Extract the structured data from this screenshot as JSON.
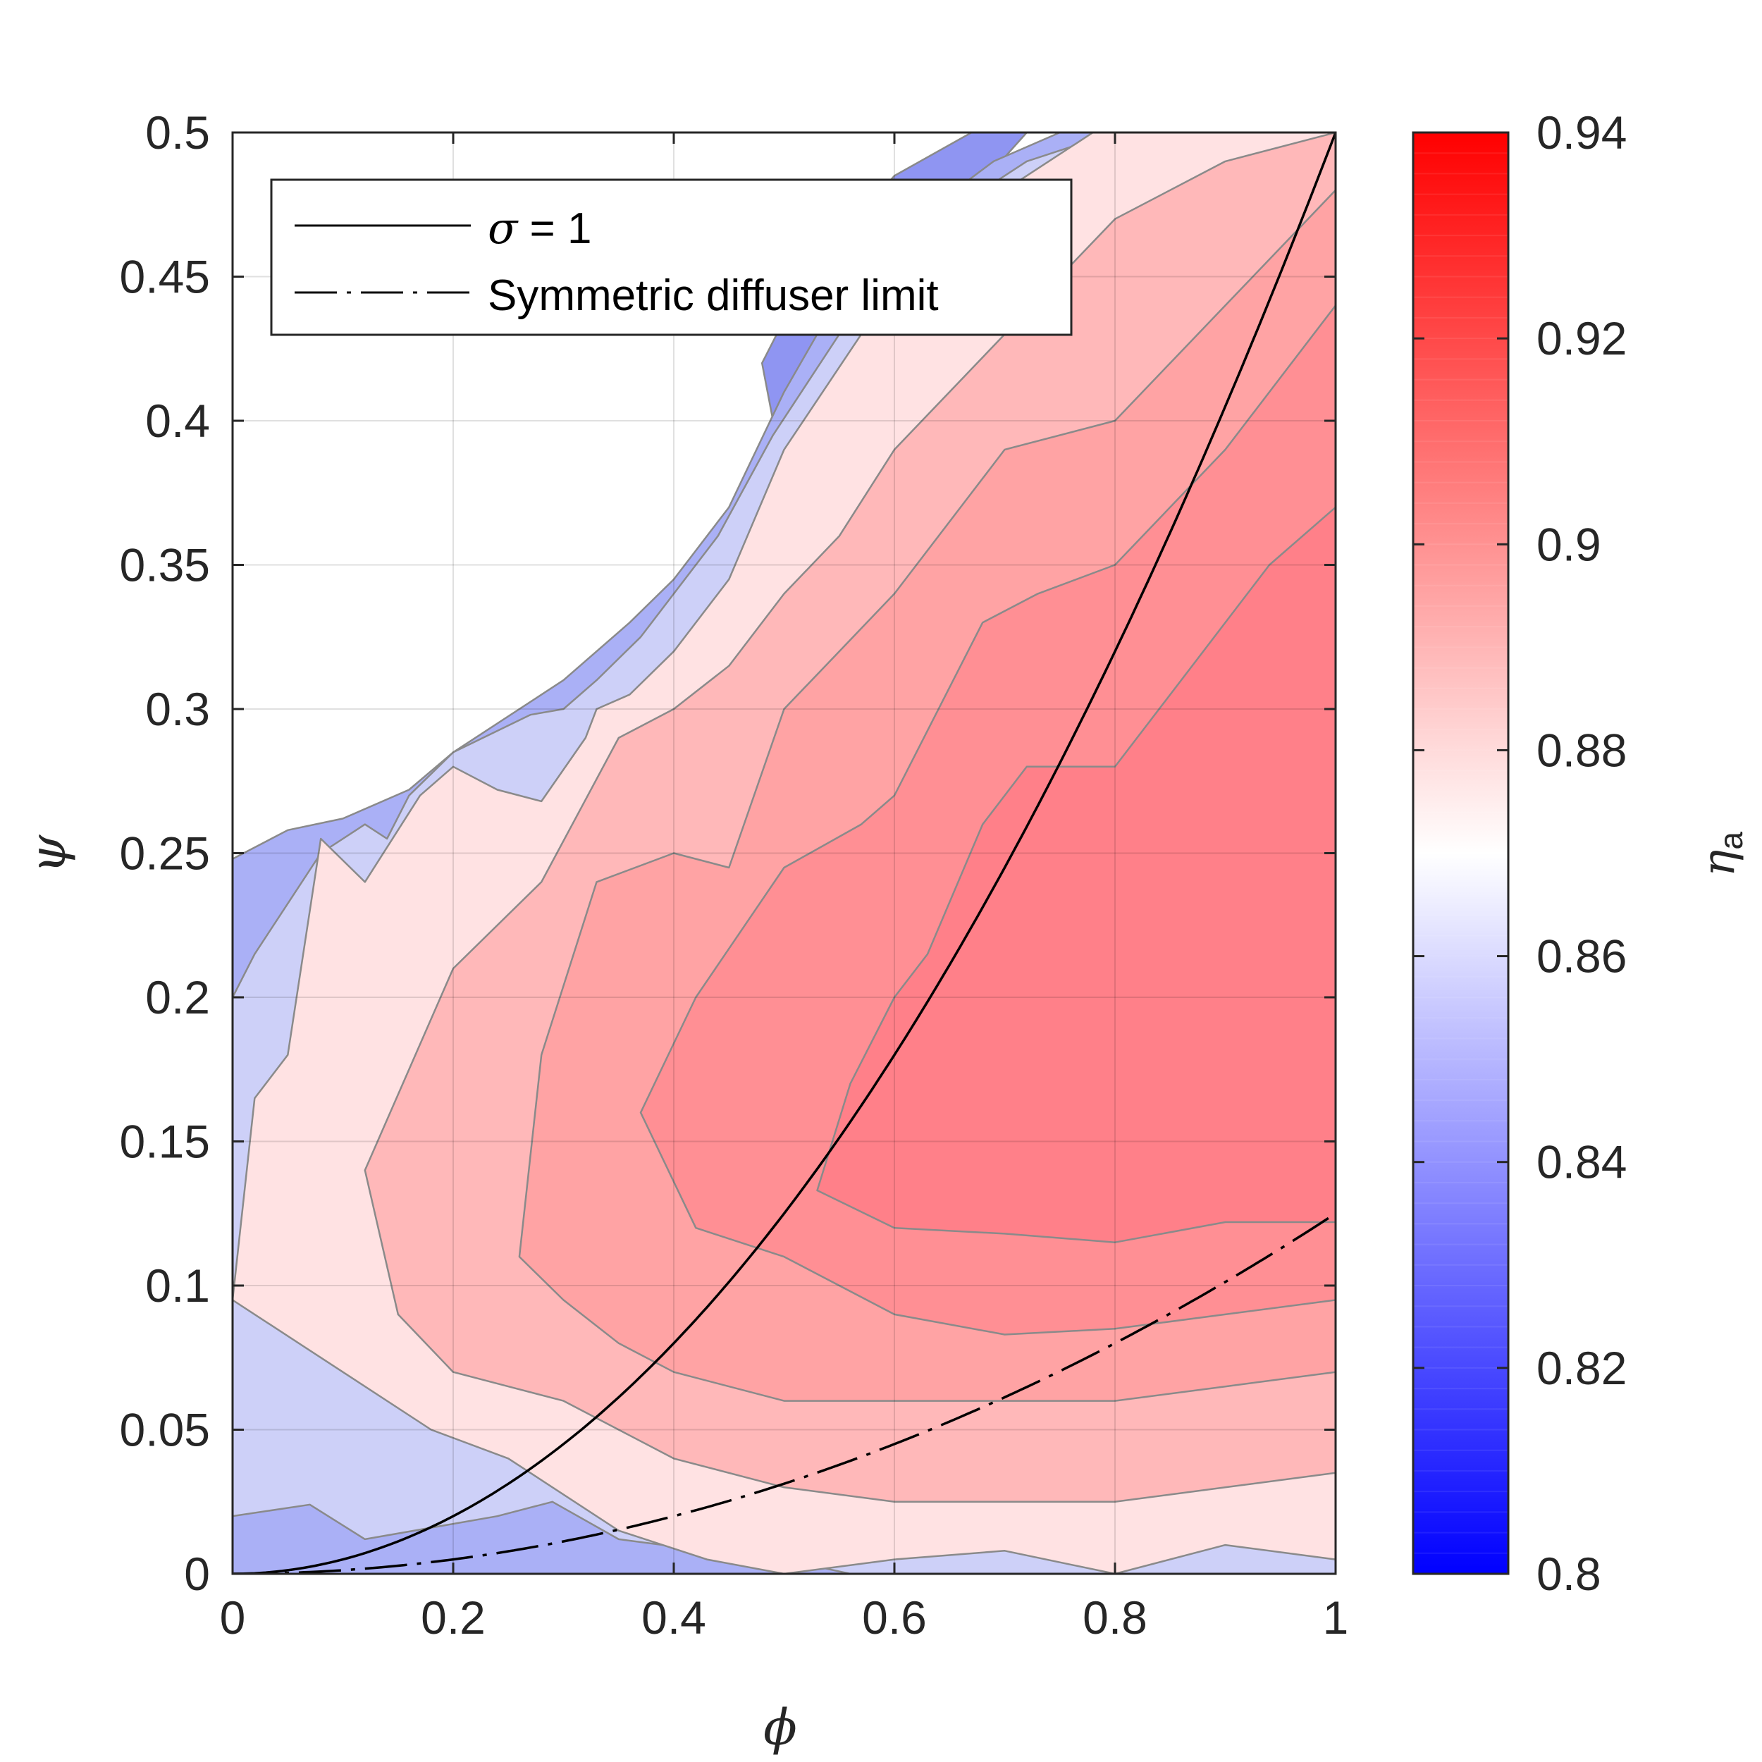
{
  "chart_data": {
    "type": "contour",
    "xlabel": "ϕ",
    "ylabel": "ψ",
    "xlim": [
      0,
      1
    ],
    "ylim": [
      0,
      0.5
    ],
    "xticks": [
      "0",
      "0.2",
      "0.4",
      "0.6",
      "0.8",
      "1"
    ],
    "yticks": [
      "0",
      "0.05",
      "0.1",
      "0.15",
      "0.2",
      "0.25",
      "0.3",
      "0.35",
      "0.4",
      "0.45",
      "0.5"
    ],
    "grid": true,
    "colorbar": {
      "label_symbol": "η",
      "label_sub": "a",
      "range": [
        0.8,
        0.94
      ],
      "ticks": [
        "0.8",
        "0.82",
        "0.84",
        "0.86",
        "0.88",
        "0.9",
        "0.92",
        "0.94"
      ],
      "low_color": "#0000ff",
      "mid_color": "#ffffff",
      "mid_value": 0.87,
      "high_color": "#ff0000"
    },
    "contour_levels": [
      0.84,
      0.85,
      0.86,
      0.87,
      0.88,
      0.89,
      0.9,
      0.91
    ],
    "contour_bands": [
      {
        "level": 0.84,
        "color": "#8f95f2",
        "polygon": [
          [
            0.48,
            0.42
          ],
          [
            0.52,
            0.45
          ],
          [
            0.6,
            0.485
          ],
          [
            0.67,
            0.5
          ],
          [
            0.72,
            0.5
          ],
          [
            0.65,
            0.47
          ],
          [
            0.58,
            0.42
          ],
          [
            0.5,
            0.38
          ]
        ]
      },
      {
        "level": 0.85,
        "color": "#aab0f6",
        "polygon": [
          [
            0,
            0.248
          ],
          [
            0.05,
            0.258
          ],
          [
            0.1,
            0.262
          ],
          [
            0.16,
            0.272
          ],
          [
            0.2,
            0.285
          ],
          [
            0.3,
            0.31
          ],
          [
            0.36,
            0.33
          ],
          [
            0.4,
            0.345
          ],
          [
            0.45,
            0.37
          ],
          [
            0.5,
            0.41
          ],
          [
            0.56,
            0.45
          ],
          [
            0.62,
            0.47
          ],
          [
            0.69,
            0.49
          ],
          [
            0.75,
            0.5
          ],
          [
            1,
            0.5
          ],
          [
            1,
            0
          ],
          [
            0,
            0
          ]
        ]
      },
      {
        "level": 0.86,
        "color": "#cdd0f8",
        "polygon": [
          [
            0,
            0.2
          ],
          [
            0.02,
            0.215
          ],
          [
            0.08,
            0.25
          ],
          [
            0.12,
            0.26
          ],
          [
            0.14,
            0.255
          ],
          [
            0.16,
            0.27
          ],
          [
            0.2,
            0.285
          ],
          [
            0.27,
            0.298
          ],
          [
            0.3,
            0.3
          ],
          [
            0.33,
            0.31
          ],
          [
            0.37,
            0.325
          ],
          [
            0.4,
            0.34
          ],
          [
            0.44,
            0.36
          ],
          [
            0.49,
            0.395
          ],
          [
            0.55,
            0.43
          ],
          [
            0.6,
            0.455
          ],
          [
            0.66,
            0.475
          ],
          [
            0.72,
            0.49
          ],
          [
            0.8,
            0.5
          ],
          [
            1,
            0.5
          ],
          [
            1,
            0
          ],
          [
            0.56,
            0.0
          ],
          [
            0.5,
            0.005
          ],
          [
            0.43,
            0.008
          ],
          [
            0.35,
            0.012
          ],
          [
            0.29,
            0.025
          ],
          [
            0.24,
            0.02
          ],
          [
            0.12,
            0.012
          ],
          [
            0.07,
            0.024
          ],
          [
            0,
            0.02
          ]
        ]
      },
      {
        "level": 0.87,
        "color": "#ffe2e3",
        "polygon": [
          [
            0,
            0.095
          ],
          [
            0.02,
            0.165
          ],
          [
            0.05,
            0.18
          ],
          [
            0.08,
            0.255
          ],
          [
            0.12,
            0.24
          ],
          [
            0.17,
            0.27
          ],
          [
            0.2,
            0.28
          ],
          [
            0.24,
            0.272
          ],
          [
            0.28,
            0.268
          ],
          [
            0.32,
            0.29
          ],
          [
            0.33,
            0.3
          ],
          [
            0.36,
            0.305
          ],
          [
            0.4,
            0.32
          ],
          [
            0.45,
            0.345
          ],
          [
            0.5,
            0.39
          ],
          [
            0.57,
            0.43
          ],
          [
            0.63,
            0.46
          ],
          [
            0.7,
            0.48
          ],
          [
            0.78,
            0.5
          ],
          [
            1,
            0.5
          ],
          [
            1,
            0.005
          ],
          [
            0.9,
            0.01
          ],
          [
            0.8,
            0.0
          ],
          [
            0.7,
            0.008
          ],
          [
            0.6,
            0.005
          ],
          [
            0.5,
            0.0
          ],
          [
            0.43,
            0.005
          ],
          [
            0.35,
            0.015
          ],
          [
            0.25,
            0.04
          ],
          [
            0.18,
            0.05
          ],
          [
            0.1,
            0.07
          ],
          [
            0,
            0.095
          ]
        ]
      },
      {
        "level": 0.88,
        "color": "#ffb8b9",
        "polygon": [
          [
            0.12,
            0.14
          ],
          [
            0.2,
            0.21
          ],
          [
            0.28,
            0.24
          ],
          [
            0.35,
            0.29
          ],
          [
            0.4,
            0.3
          ],
          [
            0.45,
            0.315
          ],
          [
            0.5,
            0.34
          ],
          [
            0.55,
            0.36
          ],
          [
            0.6,
            0.39
          ],
          [
            0.7,
            0.43
          ],
          [
            0.8,
            0.47
          ],
          [
            0.9,
            0.49
          ],
          [
            1,
            0.5
          ],
          [
            1,
            0.035
          ],
          [
            0.9,
            0.03
          ],
          [
            0.8,
            0.025
          ],
          [
            0.7,
            0.025
          ],
          [
            0.6,
            0.025
          ],
          [
            0.5,
            0.03
          ],
          [
            0.4,
            0.04
          ],
          [
            0.3,
            0.06
          ],
          [
            0.25,
            0.065
          ],
          [
            0.2,
            0.07
          ],
          [
            0.15,
            0.09
          ],
          [
            0.12,
            0.14
          ]
        ]
      },
      {
        "level": 0.89,
        "color": "#ffa3a4",
        "polygon": [
          [
            0.26,
            0.11
          ],
          [
            0.28,
            0.18
          ],
          [
            0.33,
            0.24
          ],
          [
            0.4,
            0.25
          ],
          [
            0.45,
            0.245
          ],
          [
            0.5,
            0.3
          ],
          [
            0.55,
            0.32
          ],
          [
            0.6,
            0.34
          ],
          [
            0.7,
            0.39
          ],
          [
            0.8,
            0.4
          ],
          [
            0.9,
            0.44
          ],
          [
            1,
            0.48
          ],
          [
            1,
            0.07
          ],
          [
            0.9,
            0.065
          ],
          [
            0.8,
            0.06
          ],
          [
            0.7,
            0.06
          ],
          [
            0.6,
            0.06
          ],
          [
            0.5,
            0.06
          ],
          [
            0.4,
            0.07
          ],
          [
            0.35,
            0.08
          ],
          [
            0.3,
            0.095
          ],
          [
            0.26,
            0.11
          ]
        ]
      },
      {
        "level": 0.9,
        "color": "#ff8f94",
        "polygon": [
          [
            0.37,
            0.16
          ],
          [
            0.42,
            0.2
          ],
          [
            0.5,
            0.245
          ],
          [
            0.57,
            0.26
          ],
          [
            0.6,
            0.27
          ],
          [
            0.68,
            0.33
          ],
          [
            0.73,
            0.34
          ],
          [
            0.8,
            0.35
          ],
          [
            0.9,
            0.39
          ],
          [
            1,
            0.44
          ],
          [
            1,
            0.095
          ],
          [
            0.9,
            0.09
          ],
          [
            0.8,
            0.085
          ],
          [
            0.7,
            0.083
          ],
          [
            0.6,
            0.09
          ],
          [
            0.5,
            0.11
          ],
          [
            0.42,
            0.12
          ],
          [
            0.37,
            0.16
          ]
        ]
      },
      {
        "level": 0.91,
        "color": "#ff8089",
        "polygon": [
          [
            0.53,
            0.133
          ],
          [
            0.56,
            0.17
          ],
          [
            0.6,
            0.2
          ],
          [
            0.63,
            0.215
          ],
          [
            0.68,
            0.26
          ],
          [
            0.72,
            0.28
          ],
          [
            0.8,
            0.28
          ],
          [
            0.88,
            0.32
          ],
          [
            0.94,
            0.35
          ],
          [
            1,
            0.37
          ],
          [
            1,
            0.122
          ],
          [
            0.9,
            0.122
          ],
          [
            0.8,
            0.115
          ],
          [
            0.7,
            0.118
          ],
          [
            0.6,
            0.12
          ],
          [
            0.53,
            0.133
          ]
        ]
      }
    ],
    "series": [
      {
        "name": "σ = 1",
        "style": "solid",
        "color": "#000000",
        "equation": "psi = 0.5 * phi^2"
      },
      {
        "name": "Symmetric diffuser limit",
        "style": "dashdot",
        "color": "#000000",
        "equation": "psi = 0.125 * phi^2"
      }
    ],
    "legend": {
      "position": "top-left",
      "entries": [
        {
          "symbol": "σ",
          "text": " = 1"
        },
        {
          "symbol": "",
          "text": "Symmetric diffuser limit"
        }
      ]
    }
  }
}
